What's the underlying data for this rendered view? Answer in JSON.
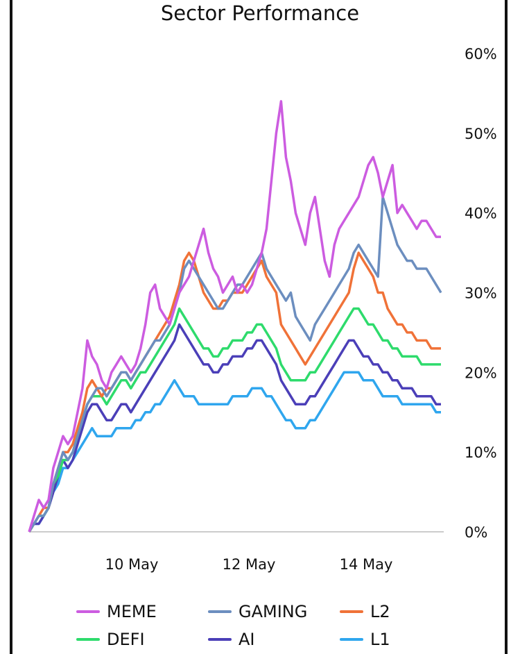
{
  "chart_data": {
    "type": "line",
    "title": "Sector Performance",
    "xlabel": "",
    "ylabel": "",
    "x_ticks": [
      "10 May",
      "12 May",
      "14 May"
    ],
    "y_ticks": [
      "0%",
      "10%",
      "20%",
      "30%",
      "40%",
      "50%",
      "60%"
    ],
    "ylim": [
      0,
      60
    ],
    "grid": false,
    "legend_position": "bottom",
    "x_range": [
      "8 May 12:00",
      "15 May 18:00"
    ],
    "series": [
      {
        "name": "MEME",
        "color": "#cc5ce0",
        "values": [
          0,
          2,
          4,
          3,
          4,
          8,
          10,
          12,
          11,
          12,
          15,
          18,
          24,
          22,
          21,
          19,
          18,
          20,
          21,
          22,
          21,
          20,
          21,
          23,
          26,
          30,
          31,
          28,
          27,
          26,
          28,
          30,
          31,
          32,
          34,
          36,
          38,
          35,
          33,
          32,
          30,
          31,
          32,
          30,
          31,
          30,
          31,
          33,
          35,
          38,
          44,
          50,
          54,
          47,
          44,
          40,
          38,
          36,
          40,
          42,
          38,
          34,
          32,
          36,
          38,
          39,
          40,
          41,
          42,
          44,
          46,
          47,
          45,
          42,
          44,
          46,
          40,
          41,
          40,
          39,
          38,
          39,
          39,
          38,
          37,
          37
        ]
      },
      {
        "name": "GAMING",
        "color": "#6c8ebf",
        "values": [
          0,
          1,
          2,
          2,
          3,
          6,
          8,
          10,
          9,
          10,
          12,
          14,
          16,
          17,
          18,
          18,
          17,
          18,
          19,
          20,
          20,
          19,
          20,
          21,
          22,
          23,
          24,
          24,
          25,
          26,
          28,
          30,
          33,
          34,
          33,
          32,
          31,
          30,
          29,
          28,
          28,
          29,
          30,
          31,
          31,
          32,
          33,
          34,
          35,
          33,
          32,
          31,
          30,
          29,
          30,
          27,
          26,
          25,
          24,
          26,
          27,
          28,
          29,
          30,
          31,
          32,
          33,
          35,
          36,
          35,
          34,
          33,
          32,
          42,
          40,
          38,
          36,
          35,
          34,
          34,
          33,
          33,
          33,
          32,
          31,
          30
        ]
      },
      {
        "name": "L2",
        "color": "#f07238",
        "values": [
          0,
          1,
          2,
          3,
          3,
          6,
          8,
          10,
          10,
          11,
          13,
          15,
          18,
          19,
          18,
          17,
          18,
          18,
          19,
          20,
          20,
          19,
          20,
          21,
          22,
          23,
          24,
          25,
          26,
          27,
          29,
          31,
          34,
          35,
          34,
          32,
          30,
          29,
          28,
          28,
          29,
          29,
          30,
          30,
          30,
          31,
          32,
          33,
          34,
          32,
          31,
          30,
          26,
          25,
          24,
          23,
          22,
          21,
          22,
          23,
          24,
          25,
          26,
          27,
          28,
          29,
          30,
          33,
          35,
          34,
          33,
          32,
          30,
          30,
          28,
          27,
          26,
          26,
          25,
          25,
          24,
          24,
          24,
          23,
          23,
          23
        ]
      },
      {
        "name": "DEFI",
        "color": "#2edb6c",
        "values": [
          0,
          1,
          2,
          2,
          3,
          6,
          7,
          9,
          9,
          10,
          12,
          14,
          16,
          17,
          17,
          17,
          16,
          17,
          18,
          19,
          19,
          18,
          19,
          20,
          20,
          21,
          22,
          23,
          24,
          25,
          26,
          28,
          27,
          26,
          25,
          24,
          23,
          23,
          22,
          22,
          23,
          23,
          24,
          24,
          24,
          25,
          25,
          26,
          26,
          25,
          24,
          23,
          21,
          20,
          19,
          19,
          19,
          19,
          20,
          20,
          21,
          22,
          23,
          24,
          25,
          26,
          27,
          28,
          28,
          27,
          26,
          26,
          25,
          24,
          24,
          23,
          23,
          22,
          22,
          22,
          22,
          21,
          21,
          21,
          21,
          21
        ]
      },
      {
        "name": "AI",
        "color": "#4b3fb8",
        "values": [
          0,
          1,
          1,
          2,
          3,
          5,
          7,
          9,
          8,
          9,
          11,
          13,
          15,
          16,
          16,
          15,
          14,
          14,
          15,
          16,
          16,
          15,
          16,
          17,
          18,
          19,
          20,
          21,
          22,
          23,
          24,
          26,
          25,
          24,
          23,
          22,
          21,
          21,
          20,
          20,
          21,
          21,
          22,
          22,
          22,
          23,
          23,
          24,
          24,
          23,
          22,
          21,
          19,
          18,
          17,
          16,
          16,
          16,
          17,
          17,
          18,
          19,
          20,
          21,
          22,
          23,
          24,
          24,
          23,
          22,
          22,
          21,
          21,
          20,
          20,
          19,
          19,
          18,
          18,
          18,
          17,
          17,
          17,
          17,
          16,
          16
        ]
      },
      {
        "name": "L1",
        "color": "#2fa6ee",
        "values": [
          0,
          1,
          1,
          2,
          3,
          5,
          6,
          8,
          8,
          9,
          10,
          11,
          12,
          13,
          12,
          12,
          12,
          12,
          13,
          13,
          13,
          13,
          14,
          14,
          15,
          15,
          16,
          16,
          17,
          18,
          19,
          18,
          17,
          17,
          17,
          16,
          16,
          16,
          16,
          16,
          16,
          16,
          17,
          17,
          17,
          17,
          18,
          18,
          18,
          17,
          17,
          16,
          15,
          14,
          14,
          13,
          13,
          13,
          14,
          14,
          15,
          16,
          17,
          18,
          19,
          20,
          20,
          20,
          20,
          19,
          19,
          19,
          18,
          17,
          17,
          17,
          17,
          16,
          16,
          16,
          16,
          16,
          16,
          16,
          15,
          15
        ]
      }
    ]
  }
}
